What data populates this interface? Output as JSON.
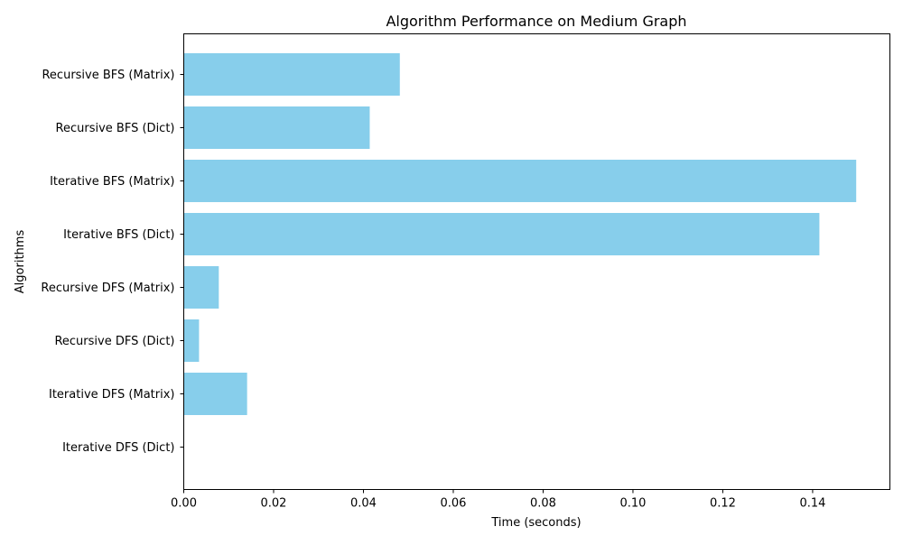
{
  "chart_data": {
    "type": "bar",
    "orientation": "horizontal",
    "title": "Algorithm Performance on Medium Graph",
    "xlabel": "Time (seconds)",
    "ylabel": "Algorithms",
    "categories": [
      "Iterative DFS (Dict)",
      "Iterative DFS (Matrix)",
      "Recursive DFS (Dict)",
      "Recursive DFS (Matrix)",
      "Iterative BFS (Dict)",
      "Iterative BFS (Matrix)",
      "Recursive BFS (Dict)",
      "Recursive BFS (Matrix)"
    ],
    "values": [
      0.0001,
      0.0141,
      0.0034,
      0.0078,
      0.1415,
      0.1497,
      0.0414,
      0.0481
    ],
    "xlim": [
      0,
      0.1572
    ],
    "xticks": [
      0.0,
      0.02,
      0.04,
      0.06,
      0.08,
      0.1,
      0.12,
      0.14
    ],
    "xtick_labels": [
      "0.00",
      "0.02",
      "0.04",
      "0.06",
      "0.08",
      "0.10",
      "0.12",
      "0.14"
    ],
    "bar_color": "#87CEEB",
    "grid": false,
    "legend": "none"
  }
}
